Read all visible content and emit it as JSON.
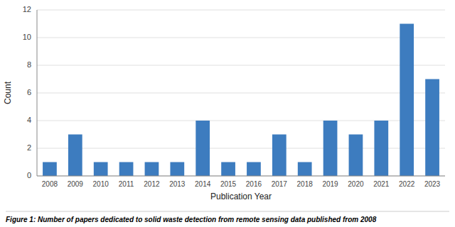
{
  "chart_data": {
    "type": "bar",
    "title": "Figure 1: Number of papers dedicated to solid waste detection from remote sensing data published from 2008",
    "x_label": "Publication Year",
    "y_label": "Count",
    "categories": [
      2008,
      2009,
      2010,
      2011,
      2012,
      2013,
      2014,
      2015,
      2016,
      2017,
      2018,
      2019,
      2020,
      2021,
      2022,
      2023
    ],
    "values": [
      1,
      3,
      1,
      1,
      1,
      1,
      4,
      1,
      1,
      3,
      1,
      4,
      3,
      4,
      11,
      7
    ],
    "color": "#3d7cbf",
    "ylim": [
      0,
      12
    ],
    "yticks": [
      0,
      2,
      4,
      6,
      8,
      10,
      12
    ],
    "grid": true
  }
}
